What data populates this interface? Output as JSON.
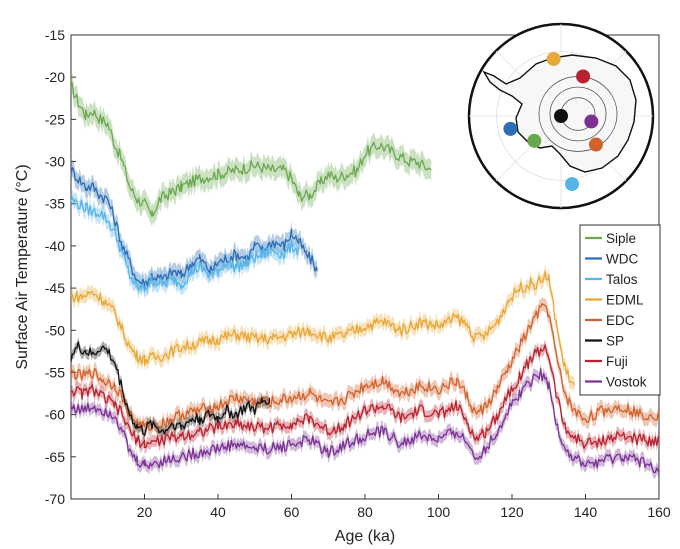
{
  "chart_data": {
    "type": "line",
    "title": "",
    "xlabel": "Age (ka)",
    "ylabel": "Surface  Air  Temperature  (°C)",
    "xlim": [
      0,
      160
    ],
    "ylim": [
      -70,
      -15
    ],
    "xticks": [
      20,
      40,
      60,
      80,
      100,
      120,
      140,
      160
    ],
    "yticks": [
      -15,
      -20,
      -25,
      -30,
      -35,
      -40,
      -45,
      -50,
      -55,
      -60,
      -65,
      -70
    ],
    "legend_position": "right",
    "series": [
      {
        "name": "Siple",
        "color": "#6aa84f",
        "band": 1.2,
        "x": [
          0,
          2,
          4,
          6,
          8,
          10,
          12,
          14,
          16,
          18,
          20,
          22,
          24,
          26,
          28,
          30,
          35,
          40,
          45,
          50,
          55,
          58,
          60,
          62,
          65,
          68,
          70,
          72,
          75,
          78,
          80,
          82,
          84,
          86,
          88,
          90,
          92,
          94,
          96,
          98
        ],
        "y": [
          -21,
          -23,
          -24.5,
          -24,
          -25,
          -25.5,
          -28,
          -30,
          -33,
          -34.5,
          -35,
          -36.5,
          -34.5,
          -34,
          -33.5,
          -33,
          -32,
          -31.5,
          -31,
          -30.5,
          -31,
          -31,
          -32,
          -34,
          -34,
          -32.5,
          -31.5,
          -32,
          -31.5,
          -31,
          -29,
          -28.5,
          -28,
          -28.5,
          -29,
          -29.5,
          -30,
          -30,
          -30.5,
          -31
        ]
      },
      {
        "name": "WDC",
        "color": "#2c6db4",
        "band": 1.0,
        "x": [
          0,
          2,
          4,
          6,
          8,
          10,
          12,
          14,
          16,
          18,
          20,
          22,
          25,
          28,
          30,
          33,
          35,
          38,
          40,
          42,
          45,
          48,
          50,
          52,
          55,
          58,
          60,
          62,
          64,
          66,
          67
        ],
        "y": [
          -31,
          -32,
          -33,
          -33,
          -34,
          -34.5,
          -37,
          -40,
          -42,
          -44,
          -44.5,
          -43.5,
          -44,
          -43,
          -43.5,
          -42,
          -41.5,
          -43,
          -42,
          -41.5,
          -41,
          -41.5,
          -40,
          -40.5,
          -39.5,
          -40,
          -38.5,
          -39.5,
          -41,
          -42,
          -43
        ]
      },
      {
        "name": "Talos",
        "color": "#56b4e9",
        "band": 0.9,
        "x": [
          0,
          2,
          4,
          6,
          8,
          10,
          12,
          14,
          16,
          18,
          20,
          22,
          25,
          28,
          30,
          33,
          35,
          38,
          40,
          42,
          45,
          48,
          50,
          52,
          55,
          58,
          60,
          62
        ],
        "y": [
          -34.5,
          -35,
          -35.5,
          -36,
          -36,
          -37,
          -38.5,
          -41,
          -43.5,
          -45,
          -45,
          -44,
          -44.5,
          -44,
          -44.5,
          -43,
          -42.5,
          -43.5,
          -43,
          -42,
          -42.5,
          -42,
          -41.5,
          -41,
          -40.5,
          -41,
          -40,
          -40.5
        ]
      },
      {
        "name": "EDML",
        "color": "#e8a838",
        "band": 0.8,
        "x": [
          0,
          3,
          6,
          9,
          12,
          14,
          16,
          18,
          20,
          25,
          30,
          35,
          40,
          45,
          50,
          55,
          60,
          65,
          70,
          75,
          80,
          85,
          90,
          95,
          100,
          105,
          108,
          110,
          113,
          116,
          119,
          122,
          125,
          127,
          129,
          130,
          132,
          134,
          136,
          137
        ],
        "y": [
          -46,
          -46,
          -45.5,
          -46.5,
          -48,
          -50,
          -52,
          -53,
          -53.5,
          -53,
          -52,
          -51.5,
          -51,
          -50.5,
          -51,
          -51,
          -50.5,
          -50,
          -51,
          -50.5,
          -49.5,
          -49,
          -50,
          -49,
          -49.5,
          -48.5,
          -49.5,
          -51,
          -50.5,
          -49,
          -46.5,
          -45,
          -44.5,
          -44.5,
          -43.5,
          -44,
          -49,
          -54,
          -56,
          -56.5
        ]
      },
      {
        "name": "EDC",
        "color": "#d2622c",
        "band": 0.8,
        "x": [
          0,
          3,
          6,
          9,
          12,
          14,
          16,
          18,
          20,
          25,
          30,
          35,
          40,
          45,
          50,
          55,
          60,
          65,
          70,
          75,
          80,
          85,
          90,
          95,
          100,
          105,
          108,
          110,
          113,
          116,
          119,
          122,
          125,
          127,
          129,
          130,
          132,
          134,
          136,
          138,
          140,
          145,
          150,
          155,
          160
        ],
        "y": [
          -55,
          -55.5,
          -55,
          -56,
          -56.5,
          -58,
          -60,
          -61,
          -61.5,
          -61,
          -60,
          -59.5,
          -59,
          -58,
          -58.5,
          -58.5,
          -58,
          -57.5,
          -59,
          -58,
          -56.5,
          -56,
          -57.5,
          -56.5,
          -57,
          -56,
          -58,
          -60,
          -59,
          -57,
          -54.5,
          -52,
          -49.5,
          -48,
          -47,
          -48,
          -53,
          -57,
          -59,
          -60,
          -60.5,
          -59.5,
          -59,
          -60,
          -60
        ]
      },
      {
        "name": "SP",
        "color": "#111111",
        "band": 0.6,
        "x": [
          0,
          2,
          4,
          6,
          8,
          10,
          12,
          14,
          16,
          18,
          20,
          22,
          25,
          28,
          30,
          33,
          35,
          38,
          40,
          42,
          45,
          48,
          50,
          52,
          54
        ],
        "y": [
          -53,
          -52,
          -52.5,
          -53,
          -52,
          -52.5,
          -54,
          -57,
          -60,
          -61.5,
          -62,
          -61,
          -62,
          -61,
          -61.5,
          -60.5,
          -60.5,
          -60,
          -60.5,
          -59.5,
          -60,
          -59,
          -59.5,
          -58.5,
          -58
        ]
      },
      {
        "name": "Fuji",
        "color": "#b8232f",
        "band": 0.7,
        "x": [
          0,
          3,
          6,
          9,
          12,
          14,
          16,
          18,
          20,
          25,
          30,
          35,
          40,
          45,
          50,
          55,
          60,
          65,
          70,
          75,
          80,
          85,
          90,
          95,
          100,
          105,
          108,
          110,
          113,
          116,
          119,
          122,
          125,
          127,
          129,
          130,
          132,
          134,
          136,
          138,
          140,
          145,
          150,
          155,
          160
        ],
        "y": [
          -57,
          -57.5,
          -57,
          -58,
          -59,
          -60,
          -62,
          -63,
          -63.5,
          -63,
          -62.5,
          -62,
          -61.5,
          -61,
          -61.5,
          -61.5,
          -61,
          -60.5,
          -62,
          -61,
          -59.5,
          -59,
          -60.5,
          -59.5,
          -60,
          -59,
          -61,
          -63,
          -62,
          -60,
          -57.5,
          -55.5,
          -53.5,
          -52.5,
          -52,
          -53,
          -57.5,
          -61,
          -62.5,
          -63,
          -63.5,
          -63,
          -62.5,
          -63,
          -63
        ]
      },
      {
        "name": "Vostok",
        "color": "#7b3294",
        "band": 0.7,
        "x": [
          0,
          3,
          6,
          9,
          12,
          14,
          16,
          18,
          20,
          25,
          30,
          35,
          40,
          45,
          50,
          55,
          60,
          65,
          70,
          75,
          80,
          85,
          90,
          95,
          100,
          105,
          108,
          110,
          113,
          116,
          119,
          122,
          125,
          127,
          129,
          130,
          132,
          134,
          136,
          138,
          140,
          145,
          150,
          155,
          160
        ],
        "y": [
          -59,
          -59.5,
          -59,
          -59.5,
          -60,
          -62,
          -64.5,
          -65.5,
          -66,
          -65.5,
          -65,
          -64.5,
          -64,
          -63.5,
          -64,
          -64,
          -63.5,
          -63,
          -64.5,
          -63.5,
          -62.5,
          -62,
          -63.5,
          -62.5,
          -63,
          -62,
          -63.5,
          -65,
          -64,
          -62,
          -59.5,
          -57.5,
          -56,
          -55,
          -55.5,
          -56.5,
          -61,
          -63.5,
          -65,
          -65.5,
          -66,
          -65.5,
          -65,
          -65.5,
          -66.5
        ]
      }
    ],
    "inset_map": {
      "stations": [
        {
          "name": "EDML",
          "color": "#e8a838",
          "lon_x": -0.08,
          "lat_y": -0.62
        },
        {
          "name": "Fuji",
          "color": "#b8232f",
          "lon_x": 0.24,
          "lat_y": -0.43
        },
        {
          "name": "SP",
          "color": "#111111",
          "lon_x": 0.0,
          "lat_y": 0.0
        },
        {
          "name": "Vostok",
          "color": "#7b3294",
          "lon_x": 0.33,
          "lat_y": 0.06
        },
        {
          "name": "EDC",
          "color": "#d2622c",
          "lon_x": 0.38,
          "lat_y": 0.31
        },
        {
          "name": "WDC",
          "color": "#2c6db4",
          "lon_x": -0.55,
          "lat_y": 0.14
        },
        {
          "name": "Siple",
          "color": "#6aa84f",
          "lon_x": -0.29,
          "lat_y": 0.27
        },
        {
          "name": "Talos",
          "color": "#56b4e9",
          "lon_x": 0.12,
          "lat_y": 0.74
        }
      ]
    }
  }
}
